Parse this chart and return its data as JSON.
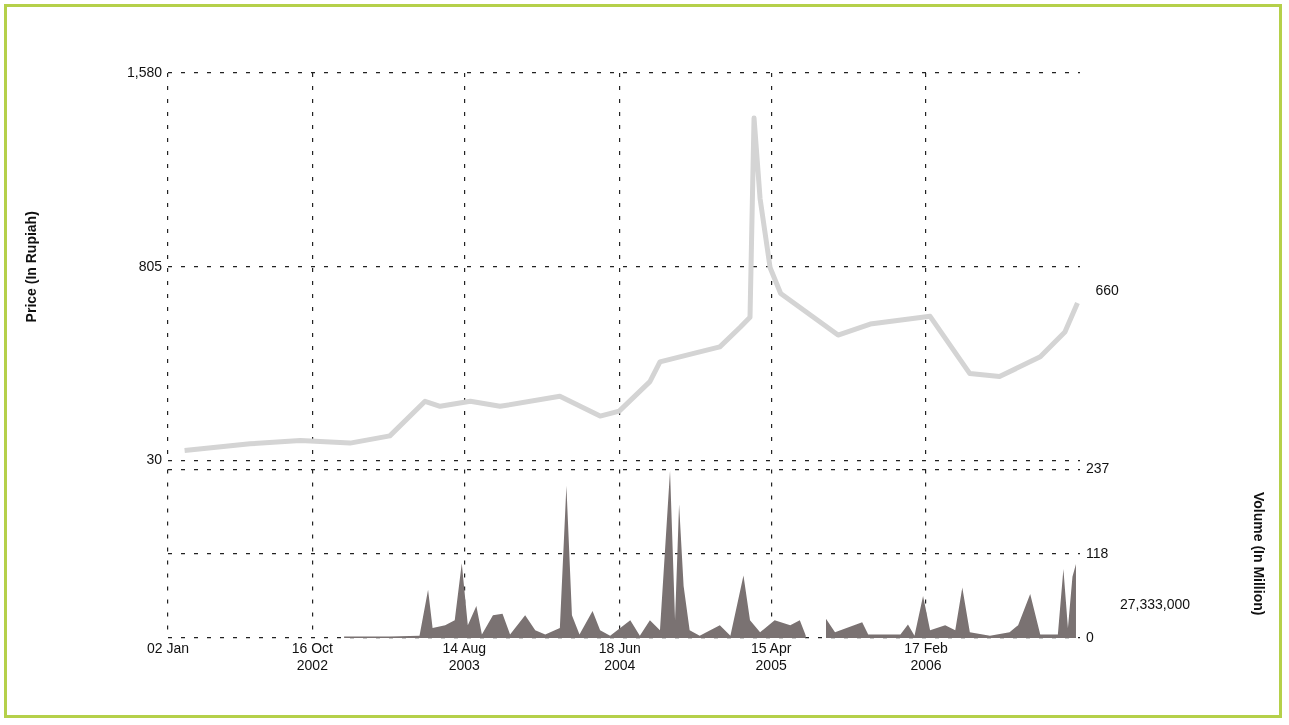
{
  "chart_data": [
    {
      "type": "line",
      "ylabel": "Price (In Rupiah)",
      "series": [
        {
          "color": "#d4d4d4",
          "x": [
            "2002-02-04",
            "2002-06-14",
            "2002-09-22",
            "2002-12-30",
            "2003-03-19",
            "2003-05-28",
            "2003-06-27",
            "2003-08-26",
            "2003-10-24",
            "2004-02-20",
            "2004-05-10",
            "2004-06-17",
            "2004-08-17",
            "2004-09-06",
            "2004-11-24",
            "2005-01-03",
            "2005-02-13",
            "2005-03-04",
            "2005-03-12",
            "2005-03-24",
            "2005-04-13",
            "2005-05-04",
            "2005-08-26",
            "2005-10-29",
            "2006-02-25",
            "2006-05-15",
            "2006-07-13",
            "2006-10-02",
            "2006-11-20",
            "2006-12-15"
          ],
          "values": [
            70,
            97,
            110,
            100,
            129,
            267,
            247,
            267,
            247,
            287,
            208,
            228,
            346,
            425,
            465,
            485,
            564,
            603,
            1400,
            1078,
            801,
            698,
            532,
            576,
            607,
            378,
            366,
            445,
            544,
            660
          ]
        }
      ],
      "xlim": [
        "2002-01-02",
        "2006-12-20"
      ],
      "xticks": [
        {
          "value": "2002-01-02",
          "label": null
        },
        {
          "value": "2002-10-16",
          "label": null
        },
        {
          "value": "2003-08-14",
          "label": null
        },
        {
          "value": "2004-06-18",
          "label": null
        },
        {
          "value": "2005-04-15",
          "label": null
        },
        {
          "value": "2006-02-17",
          "label": null
        }
      ],
      "ylim": [
        30,
        1580
      ],
      "yticks": [
        {
          "value": 30,
          "label": "30"
        },
        {
          "value": 805,
          "label": "805"
        },
        {
          "value": 1580,
          "label": "1,580"
        }
      ],
      "annotations": [
        {
          "text": "660",
          "x": "2006-12-15",
          "y": 660
        }
      ],
      "grid": true,
      "tick_labels": "y"
    },
    {
      "type": "area",
      "y2label": "Volume (In Million)",
      "series": [
        {
          "color": "#7a7272",
          "axis": "y2",
          "x": [
            "2002-12-18",
            "2003-03-19",
            "2003-05-17",
            "2003-06-03",
            "2003-06-12",
            "2003-07-07",
            "2003-07-26",
            "2003-08-09",
            "2003-08-21",
            "2003-09-07",
            "2003-09-18",
            "2003-10-10",
            "2003-10-29",
            "2003-11-13",
            "2003-12-13",
            "2004-01-02",
            "2004-01-22",
            "2004-02-20",
            "2004-03-04",
            "2004-03-15",
            "2004-03-30",
            "2004-04-25",
            "2004-05-10",
            "2004-05-30",
            "2004-07-09",
            "2004-07-28",
            "2004-08-17",
            "2004-09-06",
            "2004-09-26",
            "2004-10-06",
            "2004-10-14",
            "2004-10-23",
            "2004-11-04",
            "2004-11-24",
            "2005-01-03",
            "2005-01-24",
            "2005-02-19",
            "2005-03-04",
            "2005-03-24",
            "2005-04-22",
            "2005-05-23",
            "2005-06-11",
            "2005-06-23",
            "2005-07-13",
            "2005-08-02",
            "2005-08-20",
            "2005-10-13",
            "2005-10-25",
            "2005-12-28",
            "2006-01-12",
            "2006-01-25",
            "2006-02-11",
            "2006-02-25",
            "2006-03-27",
            "2006-04-16",
            "2006-04-30",
            "2006-05-15",
            "2006-06-24",
            "2006-08-02",
            "2006-08-19",
            "2006-09-12",
            "2006-10-02",
            "2006-11-06",
            "2006-11-17",
            "2006-11-26",
            "2006-12-05",
            "2006-12-12"
          ],
          "values": [
            2,
            2,
            3,
            68,
            14,
            18,
            25,
            105,
            18,
            45,
            5,
            32,
            34,
            5,
            32,
            11,
            5,
            14,
            214,
            32,
            5,
            38,
            11,
            3,
            25,
            3,
            25,
            11,
            235,
            25,
            188,
            73,
            11,
            3,
            18,
            3,
            88,
            25,
            8,
            25,
            18,
            25,
            3,
            null,
            27,
            8,
            22,
            5,
            5,
            19,
            3,
            59,
            11,
            18,
            11,
            71,
            8,
            3,
            8,
            18,
            62,
            5,
            5,
            97,
            14,
            86,
            104
          ]
        }
      ],
      "xlim": [
        "2002-01-02",
        "2006-12-20"
      ],
      "xticks": [
        {
          "value": "2002-01-02",
          "label": "02 Jan"
        },
        {
          "value": "2002-10-16",
          "label": "16 Oct\n2002"
        },
        {
          "value": "2003-08-14",
          "label": "14 Aug\n2003"
        },
        {
          "value": "2004-06-18",
          "label": "18 Jun\n2004"
        },
        {
          "value": "2005-04-15",
          "label": "15 Apr\n2005"
        },
        {
          "value": "2006-02-17",
          "label": "17 Feb\n2006"
        }
      ],
      "y2lim": [
        0,
        237
      ],
      "y2ticks": [
        0,
        118,
        237
      ],
      "annotations": [
        "27,333,000"
      ],
      "grid": true
    }
  ]
}
